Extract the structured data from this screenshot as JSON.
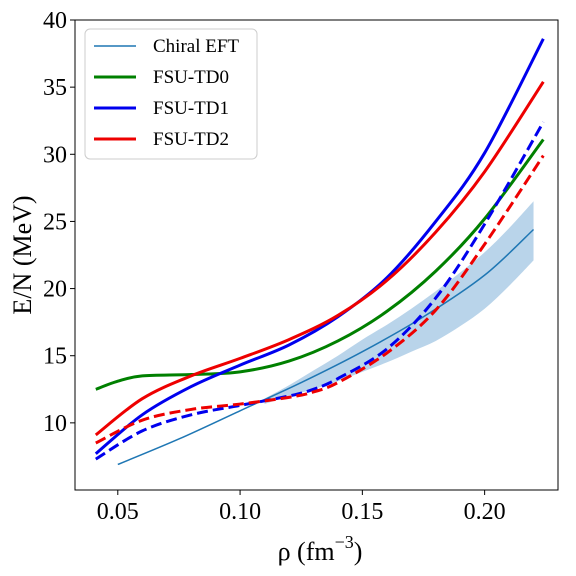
{
  "chart_data": {
    "type": "line",
    "xlabel": "ρ (fm",
    "xlabel_sup": "−3",
    "xlabel_close": ")",
    "ylabel": "E/N (MeV)",
    "xlim": [
      0.0325,
      0.23
    ],
    "ylim": [
      5.0,
      40.0
    ],
    "xticks": [
      0.05,
      0.1,
      0.15,
      0.2
    ],
    "xtick_labels": [
      "0.05",
      "0.10",
      "0.15",
      "0.20"
    ],
    "yticks": [
      10,
      15,
      20,
      25,
      30,
      35,
      40
    ],
    "ytick_labels": [
      "10",
      "15",
      "20",
      "25",
      "30",
      "35",
      "40"
    ],
    "grid": false,
    "legend_position": "top-left",
    "band": {
      "series": "Chiral EFT",
      "color": "#b9d4ea",
      "x": [
        0.11,
        0.12,
        0.13,
        0.14,
        0.15,
        0.16,
        0.17,
        0.18,
        0.19,
        0.2,
        0.21,
        0.22
      ],
      "lower": [
        11.4,
        12.0,
        12.5,
        13.1,
        13.8,
        14.5,
        15.3,
        16.1,
        17.2,
        18.5,
        20.2,
        22.1
      ],
      "upper": [
        11.8,
        12.8,
        13.9,
        15.0,
        16.2,
        17.3,
        18.5,
        19.8,
        21.2,
        22.7,
        24.5,
        26.5
      ]
    },
    "series": [
      {
        "name": "Chiral EFT",
        "color": "#1f77b4",
        "dash": "solid",
        "width": 1.5,
        "x": [
          0.05,
          0.075,
          0.1,
          0.125,
          0.15,
          0.175,
          0.2,
          0.22
        ],
        "y": [
          6.9,
          8.8,
          10.9,
          13.0,
          15.3,
          17.9,
          21.0,
          24.4
        ]
      },
      {
        "name": "FSU-TD0",
        "color": "#008000",
        "dash": "solid",
        "width": 3,
        "x": [
          0.041,
          0.05,
          0.06,
          0.08,
          0.1,
          0.12,
          0.14,
          0.16,
          0.18,
          0.2,
          0.224
        ],
        "y": [
          12.5,
          13.1,
          13.5,
          13.6,
          13.8,
          14.6,
          16.1,
          18.3,
          21.3,
          25.2,
          31.1
        ]
      },
      {
        "name": "FSU-TD1",
        "color": "#0000ee",
        "dash": "solid",
        "width": 3,
        "x": [
          0.041,
          0.06,
          0.08,
          0.1,
          0.12,
          0.14,
          0.16,
          0.18,
          0.2,
          0.224
        ],
        "y": [
          7.7,
          10.6,
          12.7,
          14.3,
          15.8,
          17.9,
          20.8,
          25.0,
          30.1,
          38.6
        ]
      },
      {
        "name": "FSU-TD2",
        "color": "#ee0000",
        "dash": "solid",
        "width": 3,
        "x": [
          0.041,
          0.06,
          0.08,
          0.1,
          0.12,
          0.14,
          0.16,
          0.18,
          0.2,
          0.224
        ],
        "y": [
          9.1,
          11.8,
          13.5,
          14.8,
          16.2,
          18.0,
          20.6,
          24.2,
          28.7,
          35.4
        ]
      },
      {
        "color": "#0000ee",
        "dash": "dashed",
        "width": 3,
        "x": [
          0.041,
          0.06,
          0.08,
          0.1,
          0.12,
          0.13,
          0.14,
          0.16,
          0.18,
          0.2,
          0.224
        ],
        "y": [
          7.3,
          9.4,
          10.6,
          11.3,
          12.0,
          12.5,
          13.3,
          15.5,
          19.3,
          24.8,
          32.4
        ]
      },
      {
        "color": "#ee0000",
        "dash": "dashed",
        "width": 3,
        "x": [
          0.041,
          0.06,
          0.08,
          0.1,
          0.12,
          0.13,
          0.14,
          0.16,
          0.18,
          0.2,
          0.224
        ],
        "y": [
          8.5,
          10.2,
          11.0,
          11.4,
          11.9,
          12.3,
          13.0,
          15.2,
          18.4,
          23.3,
          29.9
        ]
      }
    ]
  }
}
